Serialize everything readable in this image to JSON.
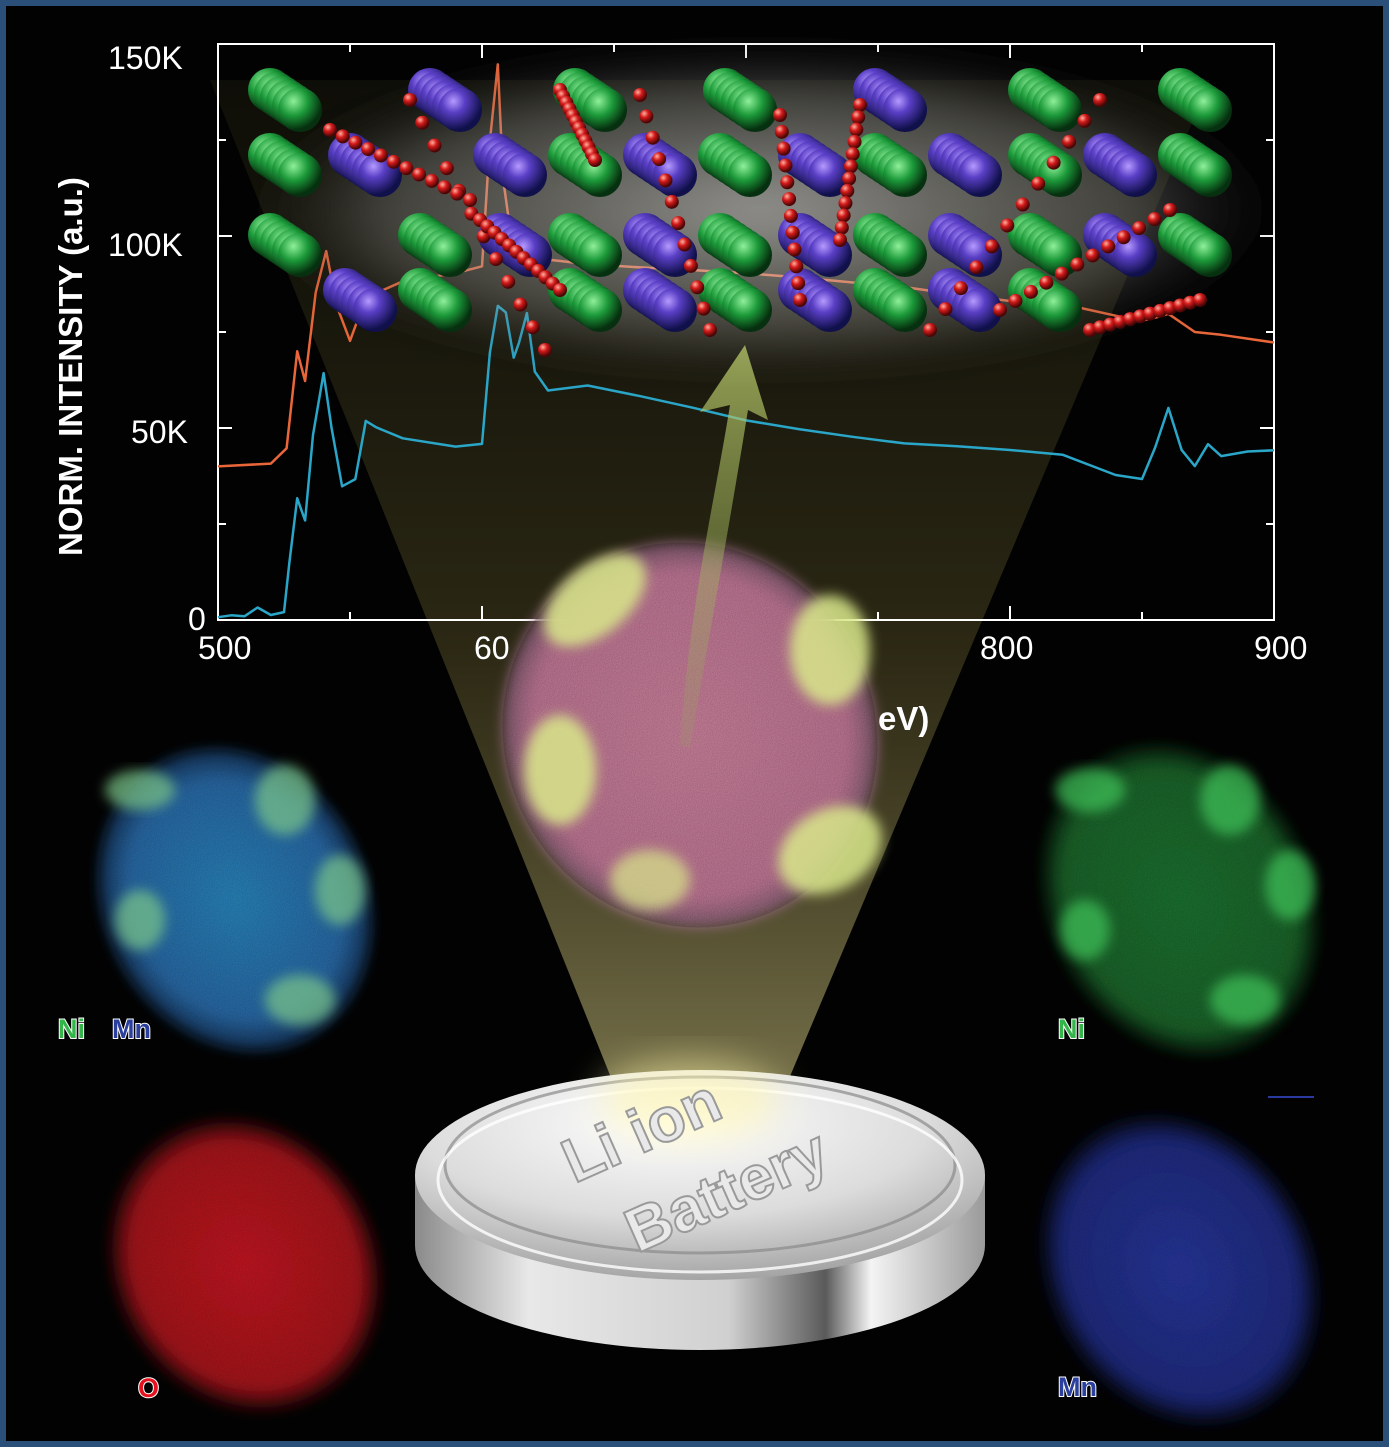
{
  "chart_data": {
    "type": "line",
    "ylabel": "NORM. INTENSITY (a.u.)",
    "xlabel_visible_fragment": "eV)",
    "xlim": [
      500,
      900
    ],
    "ylim": [
      0,
      150000
    ],
    "x_ticks": [
      "500",
      "60",
      "800",
      "900"
    ],
    "y_ticks": [
      "150K",
      "100K",
      "50K",
      "0"
    ],
    "series": [
      {
        "color": "#e8663a",
        "x": [
          500,
          520,
          526,
          530,
          533,
          537,
          541,
          545,
          550,
          556,
          570,
          590,
          600,
          603,
          606,
          608,
          611,
          615,
          620,
          625,
          640,
          660,
          680,
          700,
          720,
          740,
          760,
          780,
          800,
          820,
          840,
          850,
          855,
          860,
          870,
          880,
          900
        ],
        "y": [
          40000,
          41000,
          45000,
          70000,
          62000,
          85000,
          96000,
          82000,
          73000,
          84000,
          88000,
          90000,
          92000,
          125000,
          145000,
          115000,
          100000,
          96000,
          95000,
          94000,
          93000,
          92000,
          91000,
          90000,
          89000,
          88000,
          87000,
          85000,
          83000,
          82000,
          79000,
          78000,
          79000,
          80000,
          75000,
          74000,
          72000
        ]
      },
      {
        "color": "#2aa6c8",
        "x": [
          500,
          505,
          510,
          515,
          520,
          525,
          527,
          530,
          533,
          536,
          540,
          543,
          547,
          552,
          556,
          560,
          570,
          590,
          600,
          603,
          606,
          609,
          612,
          614,
          617,
          620,
          625,
          640,
          660,
          680,
          700,
          720,
          740,
          760,
          780,
          800,
          820,
          840,
          850,
          855,
          860,
          865,
          870,
          875,
          880,
          890,
          900
        ],
        "y": [
          1000,
          1500,
          1000,
          3000,
          1000,
          2000,
          15000,
          32000,
          26000,
          48000,
          64000,
          50000,
          35000,
          37000,
          52000,
          50000,
          47000,
          45000,
          46000,
          70000,
          82000,
          80000,
          68000,
          72000,
          80000,
          65000,
          60000,
          61000,
          58000,
          55000,
          52000,
          50000,
          48000,
          46000,
          45000,
          44000,
          43000,
          38000,
          37000,
          45000,
          55000,
          44000,
          40000,
          46000,
          43000,
          44000,
          44000
        ]
      }
    ]
  },
  "maps": {
    "ni_mn_label_a": "Ni",
    "ni_mn_label_b": "Mn",
    "ni_label": "Ni",
    "o_label": "O",
    "mn_label": "Mn"
  },
  "battery": {
    "line1": "Li ion",
    "line2": "Battery"
  },
  "colors": {
    "ni": "#33b54a",
    "mn": "#2b3f9e",
    "o": "#e3141f",
    "frame": "#2a4f78"
  }
}
